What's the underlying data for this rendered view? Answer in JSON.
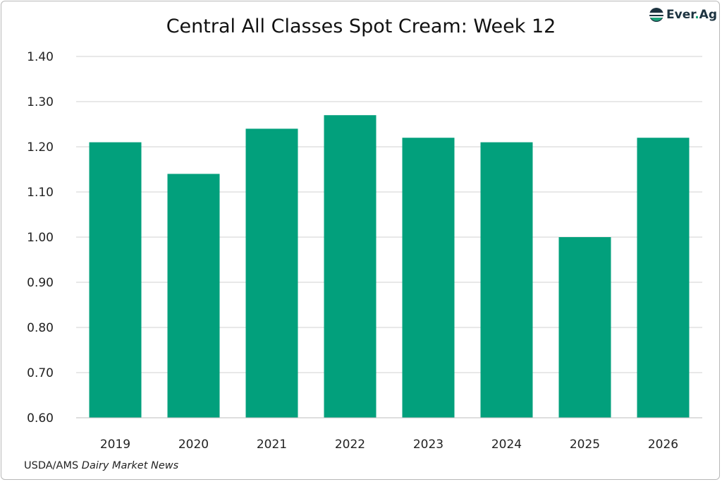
{
  "chart_data": {
    "type": "bar",
    "title": "Central All Classes Spot Cream: Week 12",
    "categories": [
      "2019",
      "2020",
      "2021",
      "2022",
      "2023",
      "2024",
      "2025",
      "2026"
    ],
    "values": [
      1.21,
      1.14,
      1.24,
      1.27,
      1.22,
      1.21,
      1.0,
      1.22
    ],
    "xlabel": "",
    "ylabel": "",
    "ylim": [
      0.6,
      1.4
    ],
    "yticks": [
      "0.60",
      "0.70",
      "0.80",
      "0.90",
      "1.00",
      "1.10",
      "1.20",
      "1.30",
      "1.40"
    ],
    "grid": true,
    "bar_color": "#02a07c"
  },
  "source": {
    "prefix": "USDA/AMS ",
    "italic": "Dairy Market News"
  },
  "logo": {
    "name": "Ever",
    "dot": ".",
    "suffix": "Ag"
  }
}
